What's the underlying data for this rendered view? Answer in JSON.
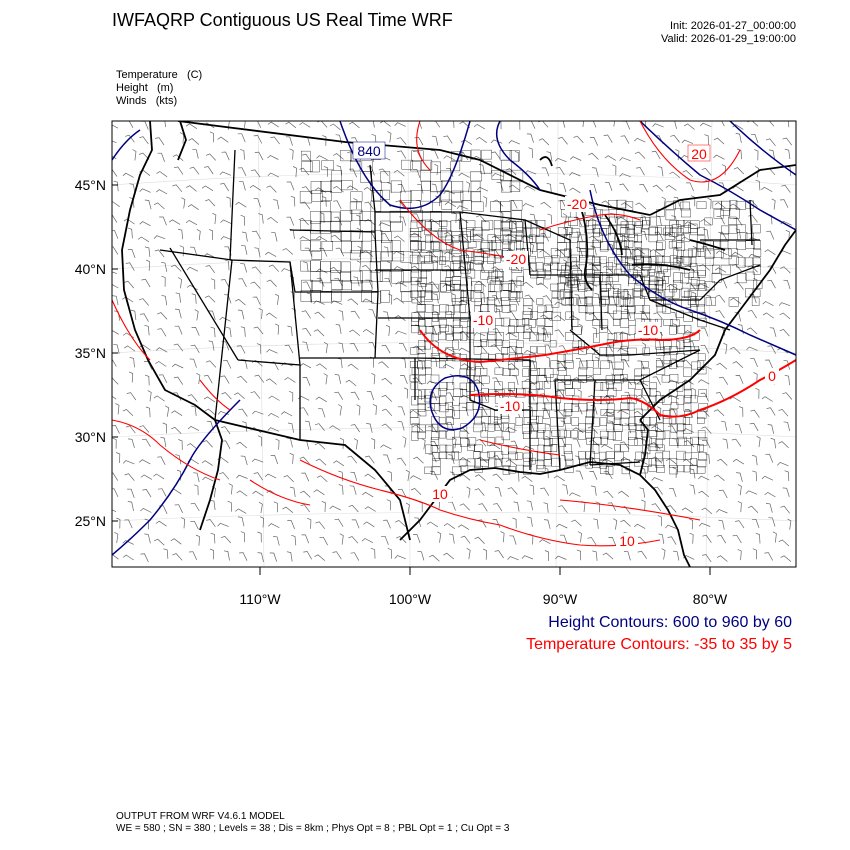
{
  "header": {
    "title": "IWFAQRP Contiguous US Real Time WRF",
    "init": "Init: 2026-01-27_00:00:00",
    "valid": "Valid: 2026-01-29_19:00:00"
  },
  "fields": [
    {
      "name": "Temperature",
      "unit": "(C)"
    },
    {
      "name": "Height",
      "unit": "(m)"
    },
    {
      "name": "Winds",
      "unit": "(kts)"
    }
  ],
  "axes": {
    "lat_labels": [
      "45°N",
      "40°N",
      "35°N",
      "30°N",
      "25°N"
    ],
    "lon_labels": [
      "110°W",
      "100°W",
      "90°W",
      "80°W"
    ]
  },
  "contour_labels": {
    "height": [
      "840"
    ],
    "temperature": [
      "20",
      "-20",
      "-20",
      "-10",
      "-10",
      "10",
      "-10",
      "0",
      "10"
    ]
  },
  "legend": {
    "height": "Height Contours: 600 to 960 by 60",
    "temperature": "Temperature Contours: -35 to 35 by 5"
  },
  "footer": {
    "line1": "OUTPUT FROM WRF V4.6.1 MODEL",
    "line2": "WE = 580 ; SN = 380 ; Levels = 38 ; Dis = 8km ; Phys Opt = 8 ; PBL Opt = 1 ; Cu Opt = 3"
  },
  "colors": {
    "height_contour": "#000080",
    "temperature_contour": "#ff0000",
    "state_border": "#000000",
    "county_border": "#000000",
    "wind_barb": "#666666"
  }
}
